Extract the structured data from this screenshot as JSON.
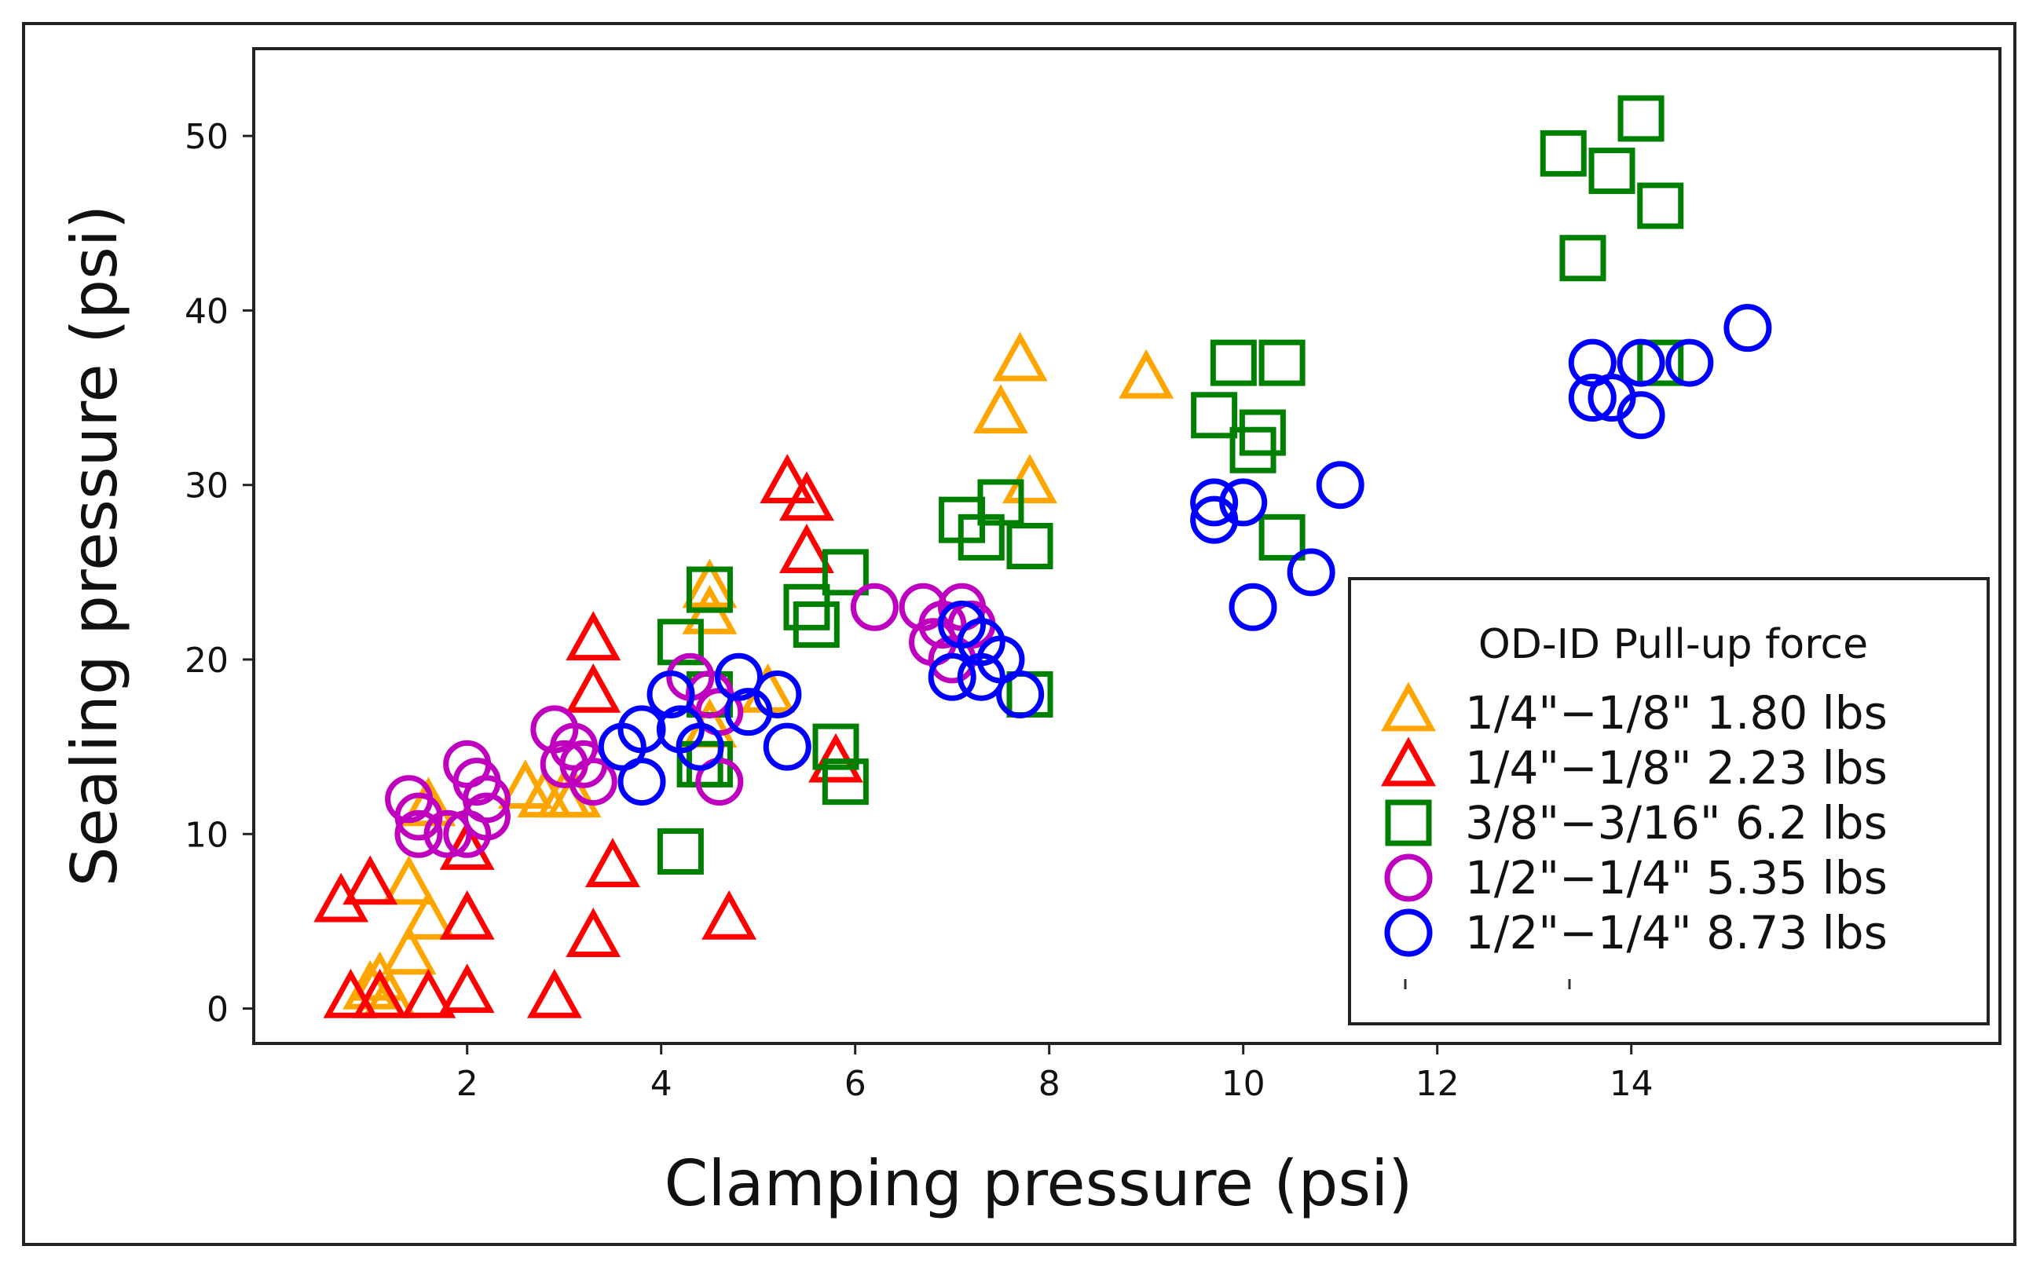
{
  "chart_data": {
    "type": "scatter",
    "title": "",
    "xlabel": "Clamping pressure (psi)",
    "ylabel": "Sealing pressure (psi)",
    "xlim": [
      -0.2,
      17.8
    ],
    "ylim": [
      -2,
      55
    ],
    "xticks": [
      2,
      4,
      6,
      8,
      10,
      12,
      14
    ],
    "xtick_labels": [
      "2",
      "4",
      "6",
      "8",
      "10",
      "12",
      "14"
    ],
    "yticks": [
      0,
      10,
      20,
      30,
      40,
      50
    ],
    "ytick_labels": [
      "0",
      "10",
      "20",
      "30",
      "40",
      "50"
    ],
    "grid": false,
    "legend": {
      "title": "OD-ID Pull-up force",
      "position": "lower-right"
    },
    "series": [
      {
        "name": "1/4\"−1/8\" 1.80 lbs",
        "marker": "triangle",
        "color": "#FFA500",
        "points": [
          [
            1.0,
            1
          ],
          [
            1.2,
            0.5
          ],
          [
            1.1,
            1.5
          ],
          [
            1.4,
            3
          ],
          [
            1.4,
            7
          ],
          [
            1.6,
            5
          ],
          [
            1.6,
            11.5
          ],
          [
            2.6,
            12.5
          ],
          [
            2.8,
            12
          ],
          [
            3.0,
            12
          ],
          [
            3.1,
            12
          ],
          [
            4.5,
            24
          ],
          [
            4.5,
            22.5
          ],
          [
            4.5,
            16
          ],
          [
            5.1,
            18
          ],
          [
            7.5,
            34
          ],
          [
            7.8,
            30
          ],
          [
            7.7,
            37
          ],
          [
            9.0,
            36
          ]
        ]
      },
      {
        "name": "1/4\"−1/8\" 2.23 lbs",
        "marker": "triangle",
        "color": "#FF0000",
        "points": [
          [
            0.7,
            6
          ],
          [
            0.8,
            0.5
          ],
          [
            1.0,
            7
          ],
          [
            1.1,
            0.5
          ],
          [
            1.6,
            0.5
          ],
          [
            2.0,
            0.8
          ],
          [
            2.0,
            5
          ],
          [
            2.0,
            9
          ],
          [
            2.9,
            0.5
          ],
          [
            3.3,
            21
          ],
          [
            3.3,
            18
          ],
          [
            3.3,
            4
          ],
          [
            3.5,
            8
          ],
          [
            4.7,
            5
          ],
          [
            5.3,
            30
          ],
          [
            5.5,
            29
          ],
          [
            5.5,
            26
          ],
          [
            5.8,
            14
          ]
        ]
      },
      {
        "name": "3/8\"−3/16\" 6.2 lbs",
        "marker": "square",
        "color": "#008000",
        "points": [
          [
            4.2,
            9
          ],
          [
            4.2,
            21
          ],
          [
            4.4,
            14
          ],
          [
            4.5,
            24
          ],
          [
            4.5,
            18
          ],
          [
            4.5,
            14
          ],
          [
            5.5,
            23
          ],
          [
            5.6,
            22
          ],
          [
            5.8,
            15
          ],
          [
            5.9,
            25
          ],
          [
            5.9,
            13
          ],
          [
            7.1,
            28
          ],
          [
            7.3,
            27
          ],
          [
            7.5,
            29
          ],
          [
            7.8,
            26.5
          ],
          [
            7.8,
            18
          ],
          [
            9.7,
            34
          ],
          [
            9.9,
            37
          ],
          [
            10.1,
            32
          ],
          [
            10.2,
            33
          ],
          [
            10.4,
            37
          ],
          [
            10.4,
            27
          ],
          [
            13.3,
            49
          ],
          [
            13.5,
            43
          ],
          [
            13.8,
            48
          ],
          [
            14.1,
            51
          ],
          [
            14.3,
            46
          ],
          [
            14.3,
            37
          ]
        ]
      },
      {
        "name": "1/2\"−1/4\" 5.35 lbs",
        "marker": "circle",
        "color": "#BF00BF",
        "points": [
          [
            1.4,
            12
          ],
          [
            1.5,
            11
          ],
          [
            1.5,
            10
          ],
          [
            1.8,
            10
          ],
          [
            2.0,
            14
          ],
          [
            2.0,
            10
          ],
          [
            2.1,
            13
          ],
          [
            2.2,
            12
          ],
          [
            2.2,
            11
          ],
          [
            2.9,
            16
          ],
          [
            3.0,
            14
          ],
          [
            3.1,
            15
          ],
          [
            3.2,
            14
          ],
          [
            3.3,
            13
          ],
          [
            4.3,
            19
          ],
          [
            4.5,
            18
          ],
          [
            4.6,
            17
          ],
          [
            4.6,
            13
          ],
          [
            6.2,
            23
          ],
          [
            6.7,
            23
          ],
          [
            6.8,
            21
          ],
          [
            6.9,
            22
          ],
          [
            7.0,
            20
          ],
          [
            7.1,
            23
          ],
          [
            7.2,
            22
          ]
        ]
      },
      {
        "name": "1/2\"−1/4\" 8.73 lbs",
        "marker": "circle",
        "color": "#0000FF",
        "points": [
          [
            3.6,
            15
          ],
          [
            3.8,
            16
          ],
          [
            3.8,
            13
          ],
          [
            4.1,
            18
          ],
          [
            4.2,
            16
          ],
          [
            4.4,
            15
          ],
          [
            4.8,
            19
          ],
          [
            4.9,
            17
          ],
          [
            5.2,
            18
          ],
          [
            5.3,
            15
          ],
          [
            7.0,
            19
          ],
          [
            7.1,
            22
          ],
          [
            7.3,
            21
          ],
          [
            7.3,
            19
          ],
          [
            7.5,
            20
          ],
          [
            7.7,
            18
          ],
          [
            9.7,
            29
          ],
          [
            9.7,
            28
          ],
          [
            10.0,
            29
          ],
          [
            10.1,
            23
          ],
          [
            10.7,
            25
          ],
          [
            11.0,
            30
          ],
          [
            13.6,
            37
          ],
          [
            13.6,
            35
          ],
          [
            13.8,
            35
          ],
          [
            14.1,
            37
          ],
          [
            14.1,
            34
          ],
          [
            14.6,
            37
          ],
          [
            15.2,
            39
          ]
        ]
      }
    ]
  }
}
